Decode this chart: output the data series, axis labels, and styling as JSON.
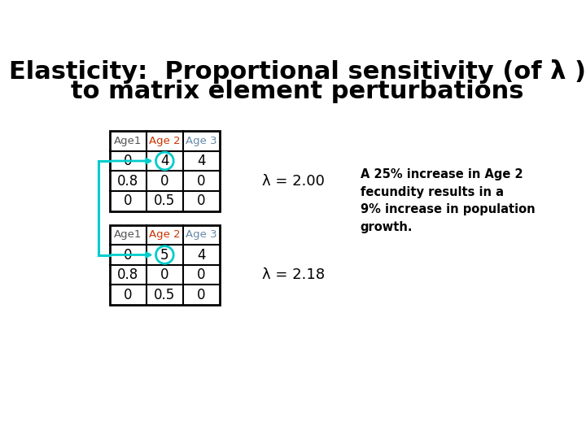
{
  "title_line1": "Elasticity:  Proportional sensitivity (of λ )",
  "title_line2": "to matrix element perturbations",
  "background_color": "#ffffff",
  "table1": {
    "headers": [
      "Age1",
      "Age 2",
      "Age 3"
    ],
    "header_colors": [
      "#555555",
      "#cc3300",
      "#6688aa"
    ],
    "rows": [
      [
        "0",
        "4",
        "4"
      ],
      [
        "0.8",
        "0",
        "0"
      ],
      [
        "0",
        "0.5",
        "0"
      ]
    ],
    "highlighted_cell": [
      0,
      1
    ],
    "highlight_color": "#00cccc"
  },
  "table2": {
    "headers": [
      "Age1",
      "Age 2",
      "Age 3"
    ],
    "header_colors": [
      "#555555",
      "#cc3300",
      "#6688aa"
    ],
    "rows": [
      [
        "0",
        "5",
        "4"
      ],
      [
        "0.8",
        "0",
        "0"
      ],
      [
        "0",
        "0.5",
        "0"
      ]
    ],
    "highlighted_cell": [
      0,
      1
    ],
    "highlight_color": "#00cccc"
  },
  "lambda1_text": "λ = 2.00",
  "lambda2_text": "λ = 2.18",
  "annotation_text": "A 25% increase in Age 2\nfecundity results in a\n9% increase in population\ngrowth.",
  "bracket_color": "#00cccc",
  "circle_color": "#00cccc"
}
